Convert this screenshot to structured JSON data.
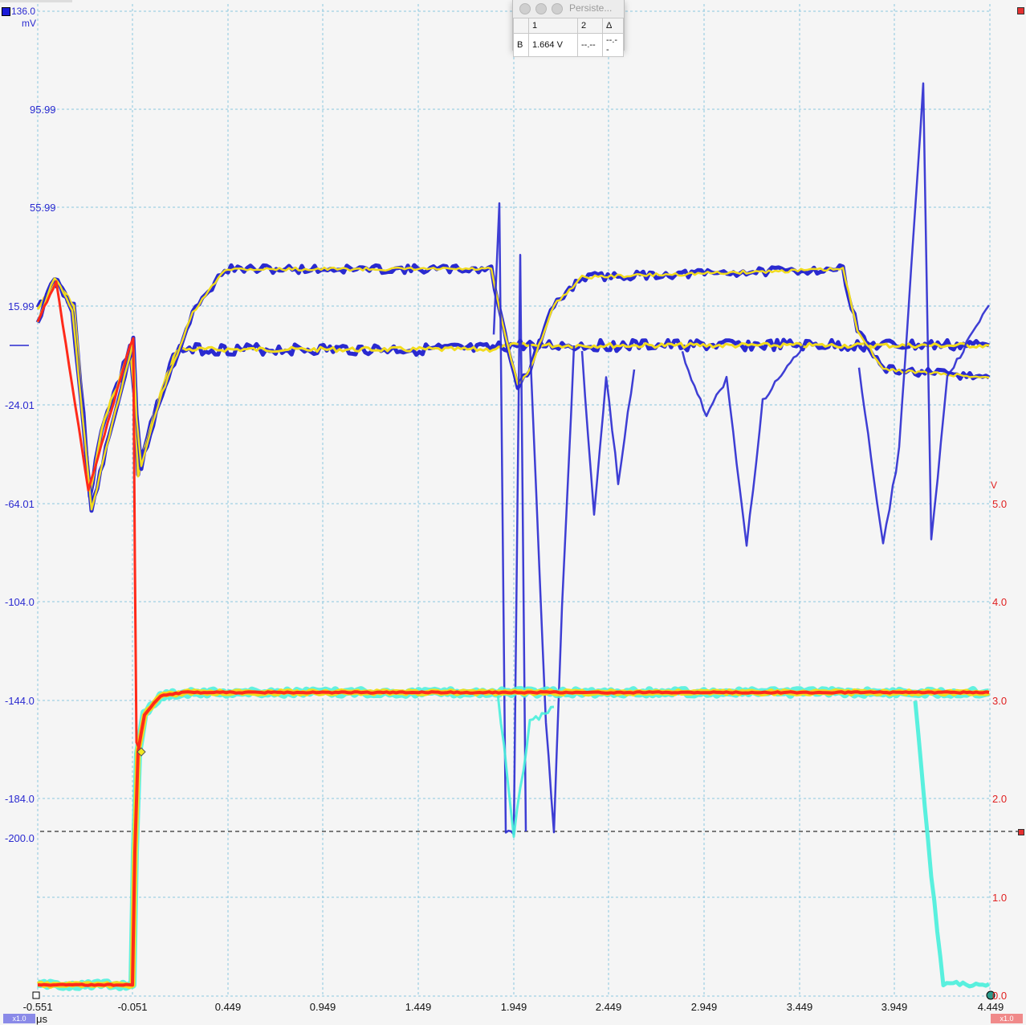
{
  "window": {
    "title": "Persiste...",
    "table": {
      "headers": [
        "",
        "1",
        "2",
        "Δ"
      ],
      "rows": [
        [
          "B",
          "1.664 V",
          "--.--",
          "--.--"
        ]
      ]
    }
  },
  "axes": {
    "left_top_value": "136.0",
    "left_unit": "mV",
    "left_ticks": [
      "95.99",
      "55.99",
      "15.99",
      "-24.01",
      "-64.01",
      "-104.0",
      "-144.0",
      "-184.0",
      "-200.0"
    ],
    "right_unit": "V",
    "right_ticks": [
      "5.0",
      "4.0",
      "3.0",
      "2.0",
      "1.0",
      "0.0"
    ],
    "x_ticks": [
      "-0.551",
      "-0.051",
      "0.449",
      "0.949",
      "1.449",
      "1.949",
      "2.449",
      "2.949",
      "3.449",
      "3.949",
      "4.449"
    ],
    "x_unit": "μs"
  },
  "badges": {
    "left": "x1.0",
    "right": "x1.0"
  },
  "colors": {
    "background": "#f5f5f5",
    "grid": "#8cc8e0",
    "channel_a": "#2a2ad0",
    "channel_b": "#e02020",
    "persistence_hot": "#ff2a1a",
    "persistence_warm": "#f2dc1e",
    "persistence_cool": "#48f0dc"
  }
}
